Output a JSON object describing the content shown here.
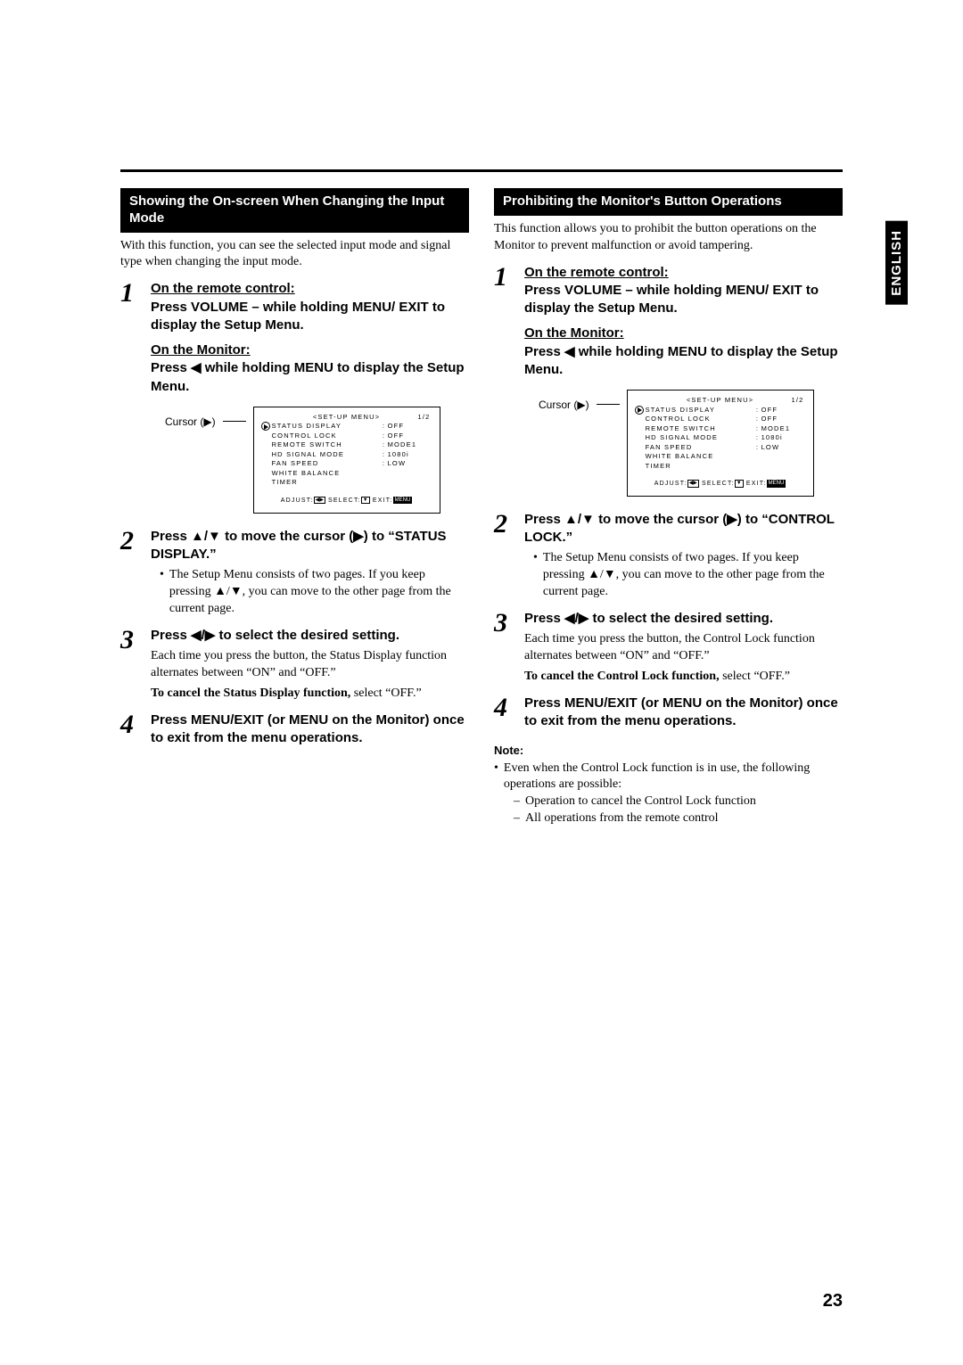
{
  "language_tab": "ENGLISH",
  "page_number": "23",
  "left": {
    "header": "Showing the On-screen When Changing the Input Mode",
    "intro": "With this function, you can see the selected input mode and signal type when changing the input mode.",
    "steps": {
      "s1": {
        "title_u": "On the remote control:",
        "title_rest": "Press VOLUME – while holding MENU/ EXIT to display the Setup Menu.",
        "monitor_u": "On the Monitor:",
        "monitor_rest": "Press ◀ while holding MENU to display the Setup Menu."
      },
      "s2": {
        "title": "Press ▲/▼ to move the cursor (▶) to “STATUS DISPLAY.”",
        "bullet": "The Setup Menu consists of two pages. If you keep pressing ▲/▼, you can move to the other page from the current page."
      },
      "s3": {
        "title": "Press ◀/▶ to select the desired setting.",
        "sub": "Each time you press the button, the Status Display function alternates between “ON” and “OFF.”",
        "cancel_b": "To cancel the Status Display function,",
        "cancel_rest": " select “OFF.”"
      },
      "s4": {
        "title": "Press MENU/EXIT (or MENU on the Monitor) once to exit from the menu operations."
      }
    }
  },
  "right": {
    "header": "Prohibiting the Monitor's Button Operations",
    "intro": "This function allows you to prohibit the button operations on the Monitor to prevent malfunction or avoid tampering.",
    "steps": {
      "s1": {
        "title_u": "On the remote control:",
        "title_rest": "Press VOLUME – while holding MENU/ EXIT to display the Setup Menu.",
        "monitor_u": "On the Monitor:",
        "monitor_rest": "Press ◀ while holding MENU to display the Setup Menu."
      },
      "s2": {
        "title": "Press ▲/▼ to move the cursor (▶) to “CONTROL LOCK.”",
        "bullet": "The Setup Menu consists of two pages. If you keep pressing ▲/▼, you can move to the other page from the current page."
      },
      "s3": {
        "title": "Press ◀/▶ to select the desired setting.",
        "sub": "Each time you press the button, the Control Lock function alternates between “ON” and “OFF.”",
        "cancel_b": "To cancel the Control Lock function,",
        "cancel_rest": " select “OFF.”"
      },
      "s4": {
        "title": "Press MENU/EXIT (or MENU on the Monitor) once to exit from the menu operations."
      }
    },
    "note_head": "Note:",
    "note_bullet": "Even when the Control Lock function is in use, the following operations are possible:",
    "note_dash1": "Operation to cancel the Control Lock function",
    "note_dash2": "All operations from the remote control"
  },
  "figure": {
    "cursor_label": "Cursor (▶)",
    "title": "<SET-UP MENU>",
    "page": "1/2",
    "rows": [
      {
        "k": "STATUS DISPLAY",
        "v": "OFF"
      },
      {
        "k": "CONTROL LOCK",
        "v": "OFF"
      },
      {
        "k": "REMOTE SWITCH",
        "v": "MODE1"
      },
      {
        "k": "HD SIGNAL MODE",
        "v": "1080i"
      },
      {
        "k": "FAN SPEED",
        "v": "LOW"
      },
      {
        "k": "WHITE BALANCE",
        "v": ""
      },
      {
        "k": "TIMER",
        "v": ""
      }
    ],
    "footer_adjust": "ADJUST:",
    "footer_select": "SELECT:",
    "footer_exit": "EXIT:",
    "footer_key_lr": "◀▶",
    "footer_key_ud": "▼",
    "footer_key_menu": "MENU"
  }
}
